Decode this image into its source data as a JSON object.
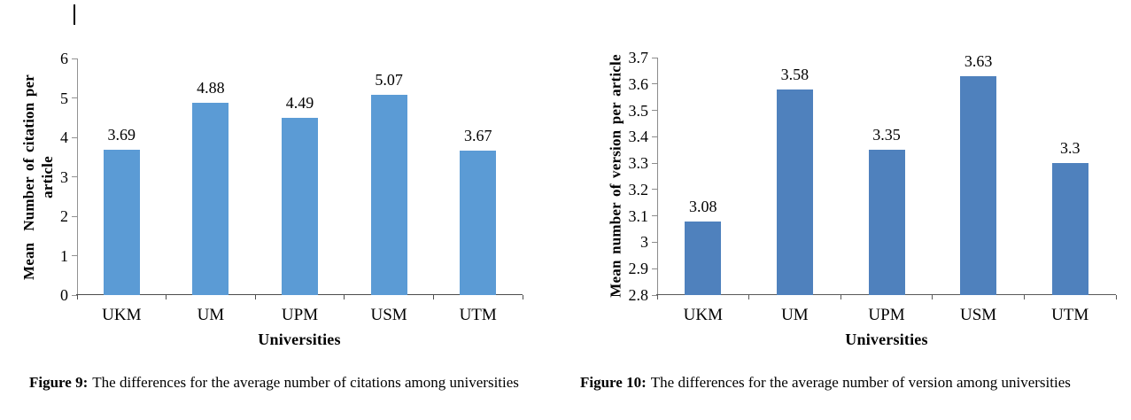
{
  "figures": [
    {
      "caption_label": "Figure 9:",
      "caption_text": "The differences for the average number of citations among universities"
    },
    {
      "caption_label": "Figure 10:",
      "caption_text": "The differences for the average number of version among universities"
    }
  ],
  "chart_data": [
    {
      "type": "bar",
      "title": "",
      "xlabel": "Universities",
      "ylabel": "Mean  Number of citation per\narticle",
      "categories": [
        "UKM",
        "UM",
        "UPM",
        "USM",
        "UTM"
      ],
      "values": [
        3.69,
        4.88,
        4.49,
        5.07,
        3.67
      ],
      "data_labels": [
        "3.69",
        "4.88",
        "4.49",
        "5.07",
        "3.67"
      ],
      "ylim": [
        0,
        6
      ],
      "yticks": [
        "0",
        "1",
        "2",
        "3",
        "4",
        "5",
        "6"
      ],
      "ytick_values": [
        0,
        1,
        2,
        3,
        4,
        5,
        6
      ],
      "bar_color": "#5B9BD5",
      "y_axis_color": "#929292",
      "x_axis_color": "#4D4D4D",
      "grid": false,
      "legend": "none"
    },
    {
      "type": "bar",
      "title": "",
      "xlabel": "Universities",
      "ylabel": "Mean number of version per article",
      "categories": [
        "UKM",
        "UM",
        "UPM",
        "USM",
        "UTM"
      ],
      "values": [
        3.08,
        3.58,
        3.35,
        3.63,
        3.3
      ],
      "data_labels": [
        "3.08",
        "3.58",
        "3.35",
        "3.63",
        "3.3"
      ],
      "ylim": [
        2.8,
        3.7
      ],
      "yticks": [
        "2.8",
        "2.9",
        "3",
        "3.1",
        "3.2",
        "3.3",
        "3.4",
        "3.5",
        "3.6",
        "3.7"
      ],
      "ytick_values": [
        2.8,
        2.9,
        3.0,
        3.1,
        3.2,
        3.3,
        3.4,
        3.5,
        3.6,
        3.7
      ],
      "bar_color": "#4F81BD",
      "y_axis_color": "#8C8C8C",
      "x_axis_color": "#595959",
      "grid": false,
      "legend": "none"
    }
  ]
}
